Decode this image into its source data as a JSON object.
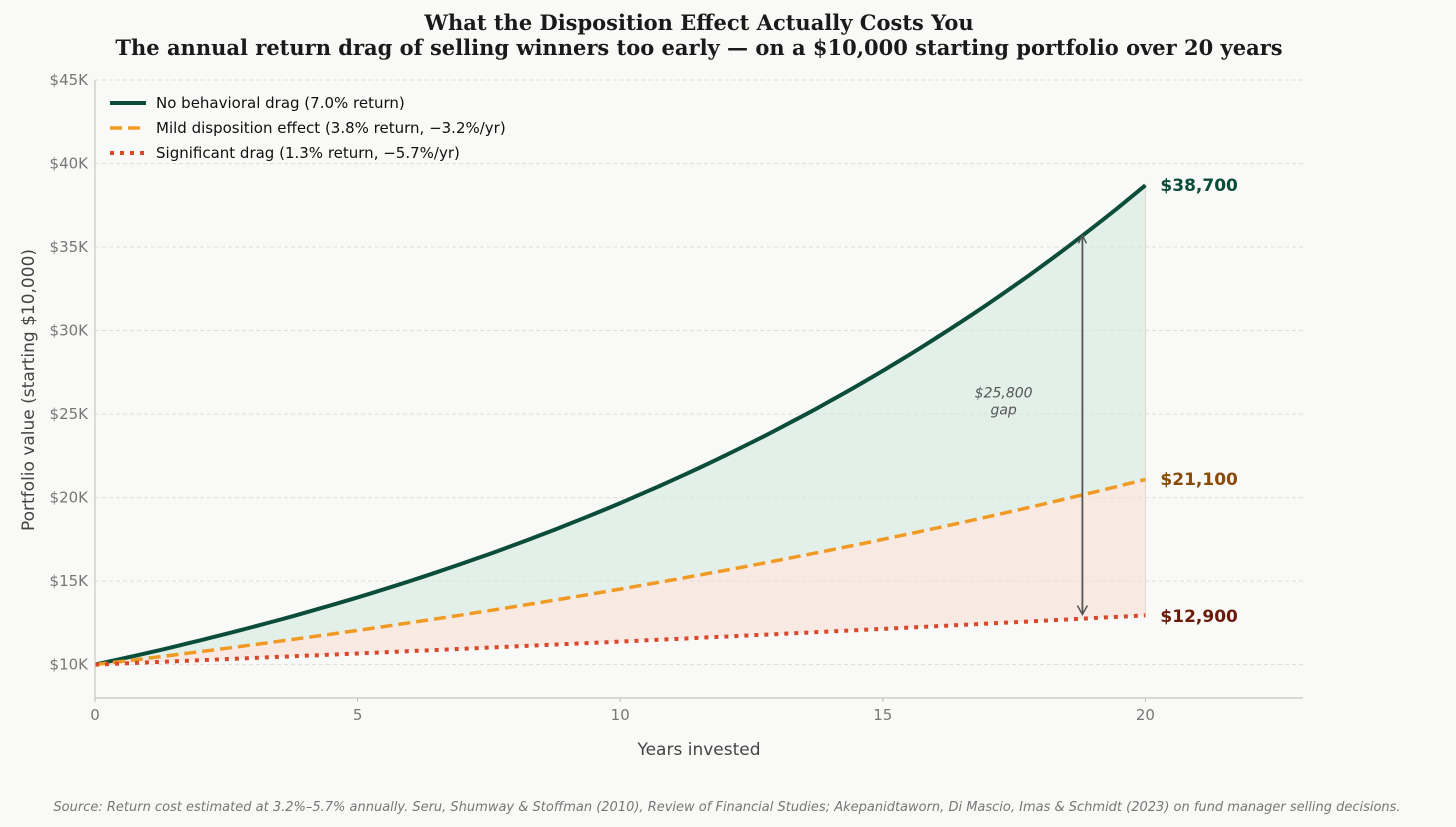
{
  "chart_data": {
    "type": "line",
    "title": "What the Disposition Effect Actually Costs You",
    "subtitle": "The annual return drag of selling winners too early — on a $10,000 starting portfolio over 20 years",
    "xlabel": "Years invested",
    "ylabel": "Portfolio value (starting $10,000)",
    "xlim": [
      0,
      23
    ],
    "ylim": [
      8000,
      45000
    ],
    "xticks": [
      0,
      5,
      10,
      15,
      20
    ],
    "xtick_labels": [
      "0",
      "5",
      "10",
      "15",
      "20"
    ],
    "yticks": [
      10000,
      15000,
      20000,
      25000,
      30000,
      35000,
      40000,
      45000
    ],
    "ytick_labels": [
      "$10K",
      "$15K",
      "$20K",
      "$25K",
      "$30K",
      "$35K",
      "$40K",
      "$45K"
    ],
    "grid": "horizontal dashed",
    "legend_position": "top-left",
    "start_value": 10000,
    "years": 20,
    "series": [
      {
        "name": "No behavioral drag (7.0% return)",
        "rate": 0.07,
        "final": 38700,
        "final_label": "$38,700",
        "color": "#0b4d3a",
        "style": "solid"
      },
      {
        "name": "Mild disposition effect (3.8% return, −3.2%/yr)",
        "rate": 0.038,
        "final": 21100,
        "final_label": "$21,100",
        "color": "#f09a24",
        "label_color": "#8a4a08",
        "style": "dashed"
      },
      {
        "name": "Significant drag (1.3% return, −5.7%/yr)",
        "rate": 0.013,
        "final": 12900,
        "final_label": "$12,900",
        "color": "#d9482a",
        "label_color": "#6b1a0a",
        "style": "dotted"
      }
    ],
    "annotation": {
      "line1": "$25,800",
      "line2": "gap",
      "arrow_x": 18.8,
      "arrow_from": 35700,
      "arrow_to": 13000,
      "text_x": 17.3,
      "text_y": 25800
    },
    "source": "Source: Return cost estimated at 3.2%–5.7% annually. Seru, Shumway & Stoffman (2010), Review of Financial Studies; Akepanidtaworn, Di Mascio, Imas & Schmidt (2023) on fund manager selling decisions."
  }
}
